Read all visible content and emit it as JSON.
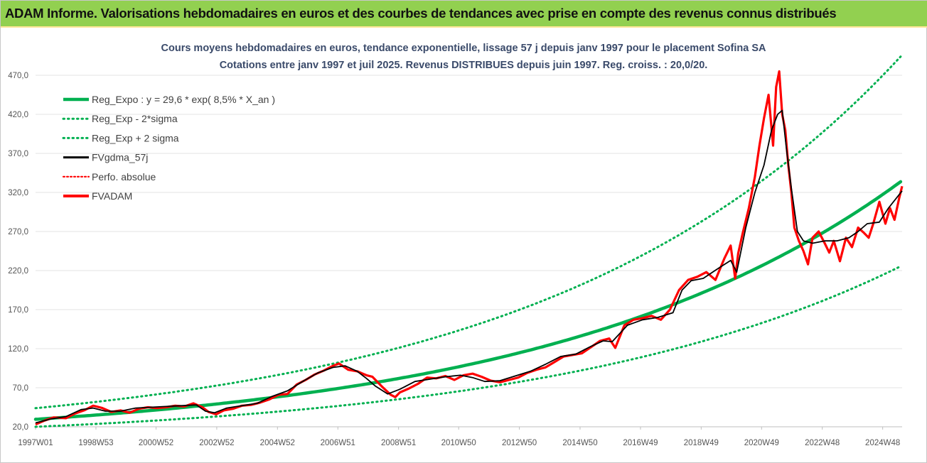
{
  "header": {
    "banner_text": "ADAM Informe. Valorisations hebdomadaires en euros et des courbes de tendances avec prise en compte des revenus connus distribués"
  },
  "colors": {
    "banner": "#92d050",
    "reg": "#00b050",
    "avg": "#000000",
    "price": "#ff0000",
    "grid": "#e3e3e3"
  },
  "chart_data": {
    "type": "line",
    "title_line1": "Cours moyens hebdomadaires en euros, tendance exponentielle, lissage 57 j depuis janv 1997 pour le placement Sofina SA",
    "title_line2": "Cotations entre janv 1997 et juil 2025. Revenus DISTRIBUES depuis juin 1997. Reg. croiss. : 20,0/20.",
    "xlabel": "",
    "ylabel": "",
    "x_range": [
      1997.0,
      2025.55
    ],
    "ylim": [
      20,
      490
    ],
    "y_ticks": [
      20,
      70,
      120,
      170,
      220,
      270,
      320,
      370,
      420,
      470
    ],
    "y_tick_labels": [
      "20,0",
      "70,0",
      "120,0",
      "170,0",
      "220,0",
      "270,0",
      "320,0",
      "370,0",
      "420,0",
      "470,0"
    ],
    "x_ticks": [
      1997.0,
      1998.99,
      2000.97,
      2002.97,
      2004.97,
      2006.96,
      2008.96,
      2010.94,
      2012.94,
      2014.94,
      2016.93,
      2018.93,
      2020.92,
      2022.92,
      2024.91
    ],
    "x_tick_labels": [
      "1997W01",
      "1998W53",
      "2000W52",
      "2002W52",
      "2004W52",
      "2006W51",
      "2008W51",
      "2010W50",
      "2012W50",
      "2014W50",
      "2016W49",
      "2018W49",
      "2020W49",
      "2022W48",
      "2024W48"
    ],
    "grid": true,
    "legend_position": "top-left",
    "regression": {
      "a": 29.6,
      "rate": 0.085,
      "sigma_factor": 1.48
    },
    "series": [
      {
        "name": "Reg_Expo : y = 29,6 * exp( 8,5% *  X_an )",
        "style": "reg"
      },
      {
        "name": "Reg_Exp - 2*sigma",
        "style": "reg-low"
      },
      {
        "name": "Reg_Exp + 2 sigma",
        "style": "reg-high"
      },
      {
        "name": "FVgdma_57j",
        "style": "avg",
        "x": [
          1997.0,
          1997.5,
          1998.0,
          1998.5,
          1998.9,
          1999.3,
          1999.8,
          2000.3,
          2000.8,
          2001.3,
          2001.8,
          2002.3,
          2002.6,
          2002.9,
          2003.3,
          2003.8,
          2004.3,
          2004.8,
          2005.3,
          2005.8,
          2006.3,
          2006.8,
          2007.2,
          2007.6,
          2007.9,
          2008.2,
          2008.6,
          2009.0,
          2009.5,
          2010.0,
          2010.5,
          2011.0,
          2011.4,
          2011.8,
          2012.3,
          2012.8,
          2013.3,
          2013.8,
          2014.3,
          2014.8,
          2015.3,
          2015.7,
          2016.0,
          2016.5,
          2017.0,
          2017.5,
          2018.0,
          2018.3,
          2018.6,
          2019.0,
          2019.5,
          2019.9,
          2020.1,
          2020.4,
          2020.7,
          2021.0,
          2021.25,
          2021.45,
          2021.6,
          2021.75,
          2021.9,
          2022.1,
          2022.3,
          2022.6,
          2023.0,
          2023.4,
          2023.8,
          2024.1,
          2024.4,
          2024.8,
          2025.1,
          2025.55
        ],
        "y": [
          25,
          30,
          33,
          42,
          44,
          40,
          40,
          44,
          45,
          46,
          47,
          48,
          40,
          38,
          44,
          47,
          50,
          59,
          66,
          78,
          89,
          96,
          98,
          91,
          82,
          72,
          62,
          68,
          78,
          81,
          84,
          86,
          83,
          78,
          79,
          85,
          91,
          100,
          110,
          113,
          123,
          130,
          129,
          150,
          157,
          160,
          166,
          195,
          207,
          210,
          223,
          233,
          218,
          275,
          320,
          355,
          400,
          420,
          425,
          372,
          325,
          270,
          258,
          255,
          258,
          258,
          262,
          270,
          280,
          282,
          300,
          322
        ]
      },
      {
        "name": "Perfo. absolue",
        "style": "perf"
      },
      {
        "name": "FVADAM",
        "style": "price",
        "x": [
          1997.0,
          1997.3,
          1997.6,
          1998.0,
          1998.3,
          1998.6,
          1998.9,
          1999.2,
          1999.5,
          1999.8,
          2000.1,
          2000.4,
          2000.7,
          2001.0,
          2001.3,
          2001.6,
          2001.9,
          2002.2,
          2002.5,
          2002.7,
          2002.95,
          2003.2,
          2003.5,
          2003.8,
          2004.1,
          2004.4,
          2004.7,
          2005.0,
          2005.3,
          2005.6,
          2005.9,
          2006.2,
          2006.5,
          2006.8,
          2007.0,
          2007.3,
          2007.6,
          2007.9,
          2008.1,
          2008.4,
          2008.7,
          2008.85,
          2009.0,
          2009.3,
          2009.6,
          2009.9,
          2010.2,
          2010.5,
          2010.8,
          2011.1,
          2011.4,
          2011.7,
          2012.0,
          2012.3,
          2012.6,
          2012.9,
          2013.2,
          2013.5,
          2013.8,
          2014.1,
          2014.4,
          2014.7,
          2015.0,
          2015.3,
          2015.6,
          2015.9,
          2016.1,
          2016.4,
          2016.7,
          2017.0,
          2017.3,
          2017.6,
          2017.9,
          2018.2,
          2018.5,
          2018.8,
          2019.1,
          2019.4,
          2019.7,
          2019.9,
          2020.05,
          2020.15,
          2020.3,
          2020.5,
          2020.7,
          2020.85,
          2021.0,
          2021.15,
          2021.3,
          2021.4,
          2021.5,
          2021.6,
          2021.7,
          2021.8,
          2021.9,
          2022.0,
          2022.15,
          2022.3,
          2022.45,
          2022.6,
          2022.8,
          2023.0,
          2023.15,
          2023.3,
          2023.5,
          2023.7,
          2023.9,
          2024.1,
          2024.3,
          2024.45,
          2024.6,
          2024.8,
          2025.0,
          2025.15,
          2025.3,
          2025.45,
          2025.55
        ],
        "y": [
          23,
          28,
          32,
          31,
          37,
          41,
          47,
          44,
          39,
          41,
          38,
          43,
          45,
          44,
          45,
          47,
          46,
          50,
          45,
          39,
          36,
          41,
          43,
          47,
          48,
          51,
          55,
          61,
          62,
          74,
          80,
          87,
          92,
          98,
          101,
          93,
          91,
          86,
          84,
          72,
          61,
          58,
          64,
          69,
          75,
          83,
          82,
          85,
          80,
          86,
          88,
          84,
          79,
          77,
          80,
          83,
          89,
          93,
          96,
          103,
          110,
          112,
          114,
          122,
          130,
          133,
          121,
          150,
          157,
          159,
          162,
          157,
          170,
          195,
          208,
          212,
          218,
          208,
          236,
          252,
          210,
          242,
          268,
          300,
          340,
          380,
          415,
          445,
          380,
          455,
          475,
          420,
          400,
          355,
          320,
          275,
          258,
          245,
          228,
          262,
          270,
          255,
          243,
          258,
          232,
          262,
          250,
          275,
          268,
          262,
          280,
          308,
          280,
          300,
          285,
          312,
          328
        ]
      }
    ]
  }
}
